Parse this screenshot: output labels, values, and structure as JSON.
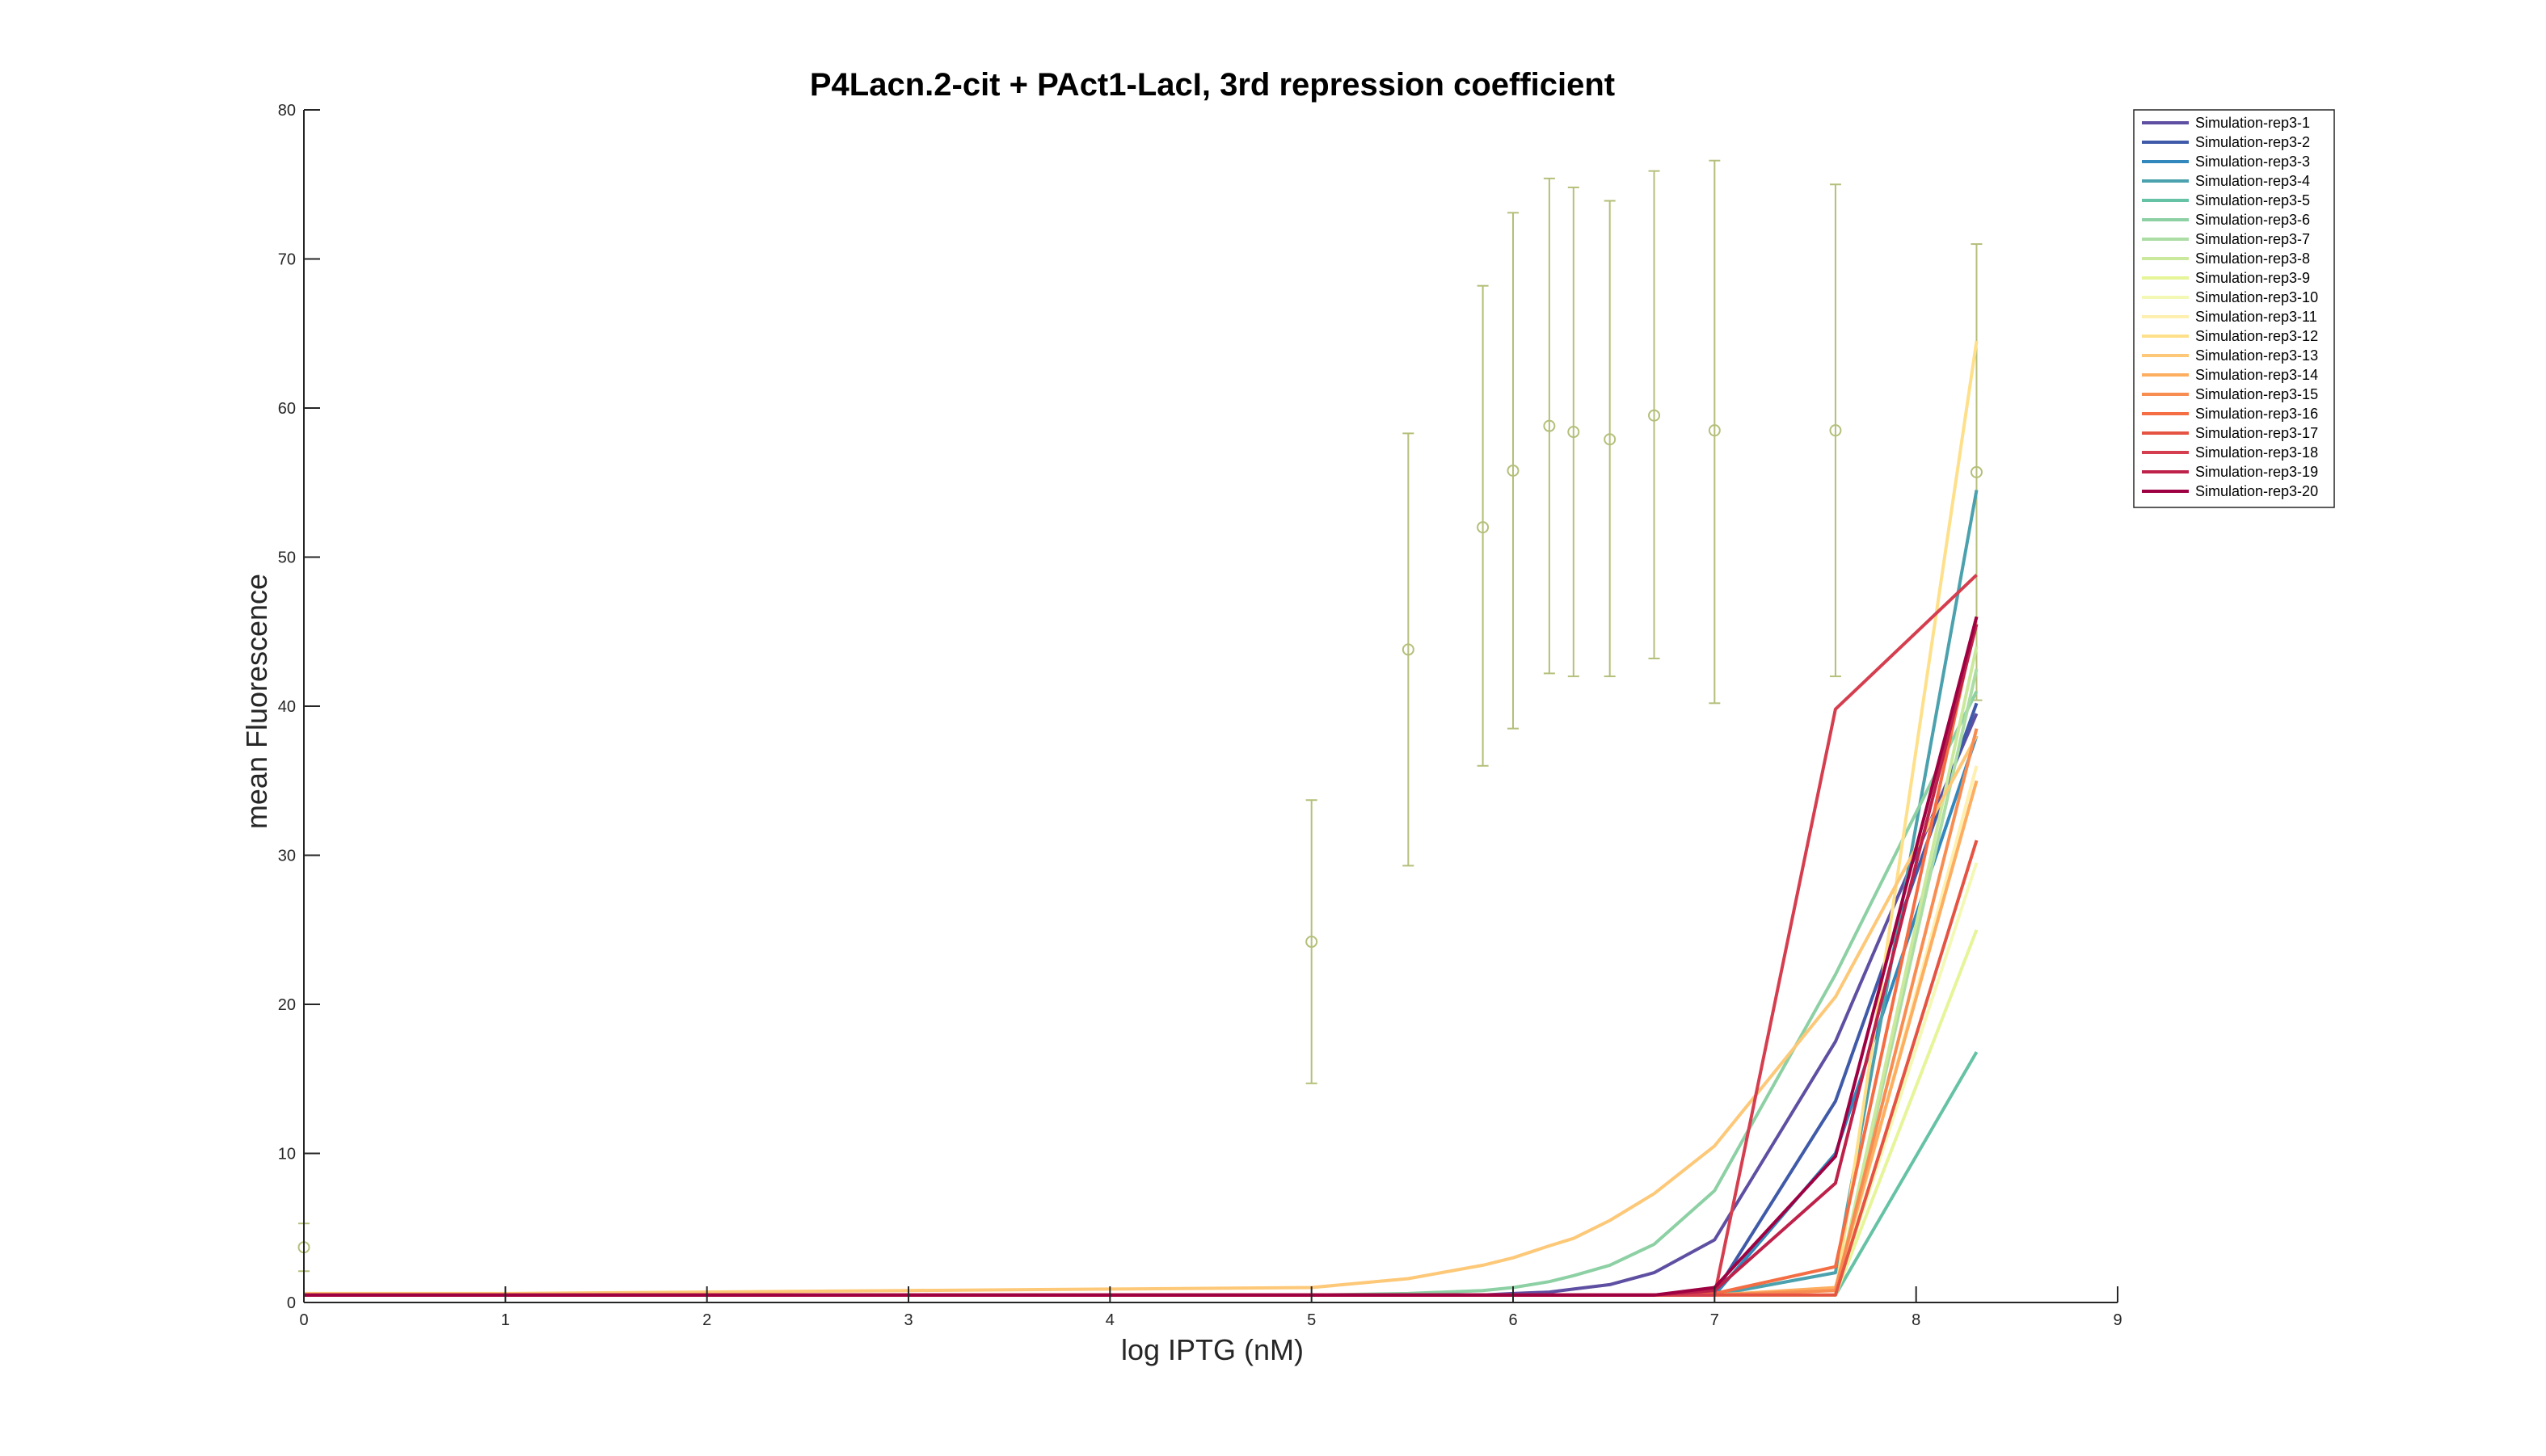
{
  "chart_data": {
    "type": "line",
    "title": "P4Lacn.2-cit + PAct1-LacI, 3rd repression coefficient",
    "xlabel": "log IPTG (nM)",
    "ylabel": "mean Fluorescence",
    "xlim": [
      0,
      9
    ],
    "ylim": [
      0,
      80
    ],
    "xticks": [
      0,
      1,
      2,
      3,
      4,
      5,
      6,
      7,
      8,
      9
    ],
    "yticks": [
      0,
      10,
      20,
      30,
      40,
      50,
      60,
      70,
      80
    ],
    "x_tick_labels": [
      "0",
      "1",
      "2",
      "3",
      "4",
      "5",
      "6",
      "7",
      "8",
      "9"
    ],
    "y_tick_labels": [
      "0",
      "10",
      "20",
      "30",
      "40",
      "50",
      "60",
      "70",
      "80"
    ],
    "grid": false,
    "legend_position": "top-right",
    "x": [
      0,
      1,
      2,
      3,
      4,
      5,
      5.48,
      5.85,
      6,
      6.18,
      6.3,
      6.48,
      6.7,
      7,
      7.6,
      8.3
    ],
    "series": [
      {
        "name": "Simulation-rep3-1",
        "color": "#5e4fa2",
        "values": [
          0.5,
          0.5,
          0.5,
          0.5,
          0.5,
          0.5,
          0.5,
          0.5,
          0.6,
          0.7,
          0.9,
          1.2,
          2.0,
          4.2,
          17.5,
          39.5
        ]
      },
      {
        "name": "Simulation-rep3-2",
        "color": "#3f5aa8",
        "values": [
          0.5,
          0.5,
          0.5,
          0.5,
          0.5,
          0.5,
          0.5,
          0.5,
          0.5,
          0.5,
          0.5,
          0.5,
          0.5,
          0.6,
          13.5,
          40.2
        ]
      },
      {
        "name": "Simulation-rep3-3",
        "color": "#3288bd",
        "values": [
          0.5,
          0.5,
          0.5,
          0.5,
          0.5,
          0.5,
          0.5,
          0.5,
          0.5,
          0.5,
          0.5,
          0.5,
          0.5,
          0.5,
          10.0,
          38.0
        ]
      },
      {
        "name": "Simulation-rep3-4",
        "color": "#4ba1ad",
        "values": [
          0.5,
          0.5,
          0.5,
          0.5,
          0.5,
          0.5,
          0.5,
          0.5,
          0.5,
          0.5,
          0.5,
          0.5,
          0.5,
          0.5,
          2.0,
          54.5
        ]
      },
      {
        "name": "Simulation-rep3-5",
        "color": "#66c2a5",
        "values": [
          0.5,
          0.5,
          0.5,
          0.5,
          0.5,
          0.5,
          0.5,
          0.5,
          0.5,
          0.5,
          0.5,
          0.5,
          0.5,
          0.5,
          0.5,
          16.8
        ]
      },
      {
        "name": "Simulation-rep3-6",
        "color": "#8cd0a4",
        "values": [
          0.5,
          0.5,
          0.5,
          0.5,
          0.5,
          0.5,
          0.6,
          0.8,
          1.0,
          1.4,
          1.8,
          2.5,
          3.9,
          7.5,
          22.0,
          41.0
        ]
      },
      {
        "name": "Simulation-rep3-7",
        "color": "#abdda4",
        "values": [
          0.5,
          0.5,
          0.5,
          0.5,
          0.5,
          0.5,
          0.5,
          0.5,
          0.5,
          0.5,
          0.5,
          0.5,
          0.5,
          0.5,
          0.5,
          42.5
        ]
      },
      {
        "name": "Simulation-rep3-8",
        "color": "#cbe99d",
        "values": [
          0.5,
          0.5,
          0.5,
          0.5,
          0.5,
          0.5,
          0.5,
          0.5,
          0.5,
          0.5,
          0.5,
          0.5,
          0.5,
          0.5,
          0.5,
          44.0
        ]
      },
      {
        "name": "Simulation-rep3-9",
        "color": "#e6f598",
        "values": [
          0.5,
          0.5,
          0.5,
          0.5,
          0.5,
          0.5,
          0.5,
          0.5,
          0.5,
          0.5,
          0.5,
          0.5,
          0.5,
          0.5,
          0.5,
          25.0
        ]
      },
      {
        "name": "Simulation-rep3-10",
        "color": "#f3f9b5",
        "values": [
          0.5,
          0.5,
          0.5,
          0.5,
          0.5,
          0.5,
          0.5,
          0.5,
          0.5,
          0.5,
          0.5,
          0.5,
          0.5,
          0.5,
          0.5,
          29.5
        ]
      },
      {
        "name": "Simulation-rep3-11",
        "color": "#fef0b0",
        "values": [
          0.5,
          0.5,
          0.5,
          0.5,
          0.5,
          0.5,
          0.5,
          0.5,
          0.5,
          0.5,
          0.5,
          0.5,
          0.5,
          0.5,
          0.5,
          36.0
        ]
      },
      {
        "name": "Simulation-rep3-12",
        "color": "#fee08b",
        "values": [
          0.5,
          0.5,
          0.5,
          0.5,
          0.5,
          0.5,
          0.5,
          0.5,
          0.5,
          0.5,
          0.5,
          0.5,
          0.5,
          0.5,
          0.5,
          64.5
        ]
      },
      {
        "name": "Simulation-rep3-13",
        "color": "#fdc877",
        "values": [
          0.6,
          0.6,
          0.7,
          0.8,
          0.9,
          1.0,
          1.6,
          2.5,
          3.0,
          3.8,
          4.3,
          5.5,
          7.3,
          10.5,
          20.5,
          38.0
        ]
      },
      {
        "name": "Simulation-rep3-14",
        "color": "#fdae61",
        "values": [
          0.5,
          0.5,
          0.5,
          0.5,
          0.5,
          0.5,
          0.5,
          0.5,
          0.5,
          0.5,
          0.5,
          0.5,
          0.5,
          0.5,
          1.0,
          35.0
        ]
      },
      {
        "name": "Simulation-rep3-15",
        "color": "#f88d52",
        "values": [
          0.5,
          0.5,
          0.5,
          0.5,
          0.5,
          0.5,
          0.5,
          0.5,
          0.5,
          0.5,
          0.5,
          0.5,
          0.5,
          0.5,
          0.8,
          38.5
        ]
      },
      {
        "name": "Simulation-rep3-16",
        "color": "#f46d43",
        "values": [
          0.5,
          0.5,
          0.5,
          0.5,
          0.5,
          0.5,
          0.5,
          0.5,
          0.5,
          0.5,
          0.5,
          0.5,
          0.5,
          0.6,
          2.4,
          46.0
        ]
      },
      {
        "name": "Simulation-rep3-17",
        "color": "#e55443",
        "values": [
          0.5,
          0.5,
          0.5,
          0.5,
          0.5,
          0.5,
          0.5,
          0.5,
          0.5,
          0.5,
          0.5,
          0.5,
          0.5,
          0.5,
          0.5,
          31.0
        ]
      },
      {
        "name": "Simulation-rep3-18",
        "color": "#d53e4f",
        "values": [
          0.5,
          0.5,
          0.5,
          0.5,
          0.5,
          0.5,
          0.5,
          0.5,
          0.5,
          0.5,
          0.5,
          0.5,
          0.5,
          0.5,
          39.8,
          48.8
        ]
      },
      {
        "name": "Simulation-rep3-19",
        "color": "#be2149",
        "values": [
          0.5,
          0.5,
          0.5,
          0.5,
          0.5,
          0.5,
          0.5,
          0.5,
          0.5,
          0.5,
          0.5,
          0.5,
          0.5,
          0.8,
          8.0,
          45.5
        ]
      },
      {
        "name": "Simulation-rep3-20",
        "color": "#9e0142",
        "values": [
          0.5,
          0.5,
          0.5,
          0.5,
          0.5,
          0.5,
          0.5,
          0.5,
          0.5,
          0.5,
          0.5,
          0.5,
          0.5,
          1.0,
          9.8,
          46.0
        ]
      }
    ],
    "experimental_data": {
      "color": "#b5bf7a",
      "marker": "circle",
      "x": [
        0,
        5,
        5.48,
        5.85,
        6,
        6.18,
        6.3,
        6.48,
        6.7,
        7,
        7.6,
        8.3
      ],
      "y": [
        3.7,
        24.2,
        43.8,
        52.0,
        55.8,
        58.8,
        58.4,
        57.9,
        59.5,
        58.5,
        58.5,
        55.7
      ],
      "err_low": [
        2.1,
        14.7,
        29.3,
        36.0,
        38.5,
        42.2,
        42.0,
        42.0,
        43.2,
        40.2,
        42.0,
        40.4
      ],
      "err_high": [
        5.3,
        33.7,
        58.3,
        68.2,
        73.1,
        75.4,
        74.8,
        73.9,
        75.9,
        76.6,
        75.0,
        71.0
      ]
    }
  }
}
